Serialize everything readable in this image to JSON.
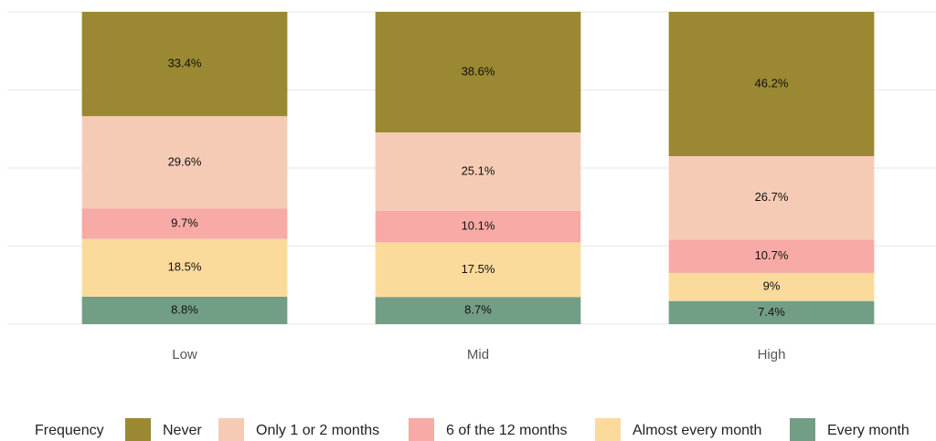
{
  "chart_data": {
    "type": "stacked_bar",
    "categories": [
      "Low",
      "Mid",
      "High"
    ],
    "ylim": [
      0,
      100
    ],
    "yticks": [
      0,
      25,
      50,
      75,
      100
    ],
    "grid": true,
    "legend_title": "Frequency",
    "legend": "bottom",
    "series": [
      {
        "name": "Every month",
        "color": "#739e86",
        "values": [
          8.8,
          8.7,
          7.4
        ],
        "value_labels": [
          "8.8%",
          "8.7%",
          "7.4%"
        ]
      },
      {
        "name": "Almost every month",
        "color": "#fbdb9c",
        "values": [
          18.5,
          17.5,
          9
        ],
        "value_labels": [
          "18.5%",
          "17.5%",
          "9%"
        ]
      },
      {
        "name": "6 of the 12 months",
        "color": "#f7aaa6",
        "values": [
          9.7,
          10.1,
          10.7
        ],
        "value_labels": [
          "9.7%",
          "10.1%",
          "10.7%"
        ]
      },
      {
        "name": "Only 1 or 2 months",
        "color": "#f6cbb5",
        "values": [
          29.6,
          25.1,
          26.7
        ],
        "value_labels": [
          "29.6%",
          "25.1%",
          "26.7%"
        ]
      },
      {
        "name": "Never",
        "color": "#9a8833",
        "values": [
          33.4,
          38.6,
          46.2
        ],
        "value_labels": [
          "33.4%",
          "38.6%",
          "46.2%"
        ]
      }
    ]
  }
}
